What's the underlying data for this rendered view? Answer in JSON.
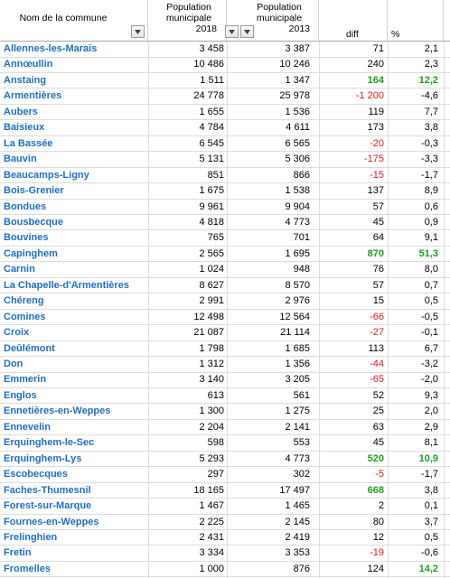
{
  "headers": {
    "name": "Nom de la commune",
    "pop2018": "Population municipale 2018",
    "pop2018_lines": [
      "Population",
      "municipale",
      "2018"
    ],
    "pop2013_lines": [
      "Population",
      "municipale",
      "2013"
    ],
    "diff": "diff",
    "pct": "%"
  },
  "colors": {
    "link_blue": "#1f6fc5",
    "negative_red": "#e21a1a",
    "highlight_green": "#1ea01e"
  },
  "rows": [
    {
      "name": "Allennes-les-Marais",
      "p2018": "3 458",
      "p2013": "3 387",
      "diff": "71",
      "pct": "2,1",
      "neg": false,
      "big": false
    },
    {
      "name": "Annœullin",
      "p2018": "10 486",
      "p2013": "10 246",
      "diff": "240",
      "pct": "2,3",
      "neg": false,
      "big": false
    },
    {
      "name": "Anstaing",
      "p2018": "1 511",
      "p2013": "1 347",
      "diff": "164",
      "pct": "12,2",
      "neg": false,
      "big": true
    },
    {
      "name": "Armentières",
      "p2018": "24 778",
      "p2013": "25 978",
      "diff": "-1 200",
      "pct": "-4,6",
      "neg": true,
      "big": false
    },
    {
      "name": "Aubers",
      "p2018": "1 655",
      "p2013": "1 536",
      "diff": "119",
      "pct": "7,7",
      "neg": false,
      "big": false
    },
    {
      "name": "Baisieux",
      "p2018": "4 784",
      "p2013": "4 611",
      "diff": "173",
      "pct": "3,8",
      "neg": false,
      "big": false
    },
    {
      "name": "La Bassée",
      "p2018": "6 545",
      "p2013": "6 565",
      "diff": "-20",
      "pct": "-0,3",
      "neg": true,
      "big": false
    },
    {
      "name": "Bauvin",
      "p2018": "5 131",
      "p2013": "5 306",
      "diff": "-175",
      "pct": "-3,3",
      "neg": true,
      "big": false
    },
    {
      "name": "Beaucamps-Ligny",
      "p2018": "851",
      "p2013": "866",
      "diff": "-15",
      "pct": "-1,7",
      "neg": true,
      "big": false
    },
    {
      "name": "Bois-Grenier",
      "p2018": "1 675",
      "p2013": "1 538",
      "diff": "137",
      "pct": "8,9",
      "neg": false,
      "big": false
    },
    {
      "name": "Bondues",
      "p2018": "9 961",
      "p2013": "9 904",
      "diff": "57",
      "pct": "0,6",
      "neg": false,
      "big": false
    },
    {
      "name": "Bousbecque",
      "p2018": "4 818",
      "p2013": "4 773",
      "diff": "45",
      "pct": "0,9",
      "neg": false,
      "big": false
    },
    {
      "name": "Bouvines",
      "p2018": "765",
      "p2013": "701",
      "diff": "64",
      "pct": "9,1",
      "neg": false,
      "big": false
    },
    {
      "name": "Capinghem",
      "p2018": "2 565",
      "p2013": "1 695",
      "diff": "870",
      "pct": "51,3",
      "neg": false,
      "big": true
    },
    {
      "name": "Carnin",
      "p2018": "1 024",
      "p2013": "948",
      "diff": "76",
      "pct": "8,0",
      "neg": false,
      "big": false
    },
    {
      "name": "La Chapelle-d'Armentières",
      "p2018": "8 627",
      "p2013": "8 570",
      "diff": "57",
      "pct": "0,7",
      "neg": false,
      "big": false
    },
    {
      "name": "Chéreng",
      "p2018": "2 991",
      "p2013": "2 976",
      "diff": "15",
      "pct": "0,5",
      "neg": false,
      "big": false
    },
    {
      "name": "Comines",
      "p2018": "12 498",
      "p2013": "12 564",
      "diff": "-66",
      "pct": "-0,5",
      "neg": true,
      "big": false
    },
    {
      "name": "Croix",
      "p2018": "21 087",
      "p2013": "21 114",
      "diff": "-27",
      "pct": "-0,1",
      "neg": true,
      "big": false
    },
    {
      "name": "Deûlémont",
      "p2018": "1 798",
      "p2013": "1 685",
      "diff": "113",
      "pct": "6,7",
      "neg": false,
      "big": false
    },
    {
      "name": "Don",
      "p2018": "1 312",
      "p2013": "1 356",
      "diff": "-44",
      "pct": "-3,2",
      "neg": true,
      "big": false
    },
    {
      "name": "Emmerin",
      "p2018": "3 140",
      "p2013": "3 205",
      "diff": "-65",
      "pct": "-2,0",
      "neg": true,
      "big": false
    },
    {
      "name": "Englos",
      "p2018": "613",
      "p2013": "561",
      "diff": "52",
      "pct": "9,3",
      "neg": false,
      "big": false
    },
    {
      "name": "Ennetières-en-Weppes",
      "p2018": "1 300",
      "p2013": "1 275",
      "diff": "25",
      "pct": "2,0",
      "neg": false,
      "big": false
    },
    {
      "name": "Ennevelin",
      "p2018": "2 204",
      "p2013": "2 141",
      "diff": "63",
      "pct": "2,9",
      "neg": false,
      "big": false
    },
    {
      "name": "Erquinghem-le-Sec",
      "p2018": "598",
      "p2013": "553",
      "diff": "45",
      "pct": "8,1",
      "neg": false,
      "big": false
    },
    {
      "name": "Erquinghem-Lys",
      "p2018": "5 293",
      "p2013": "4 773",
      "diff": "520",
      "pct": "10,9",
      "neg": false,
      "big": true
    },
    {
      "name": "Escobecques",
      "p2018": "297",
      "p2013": "302",
      "diff": "-5",
      "pct": "-1,7",
      "neg": true,
      "big": false
    },
    {
      "name": "Faches-Thumesnil",
      "p2018": "18 165",
      "p2013": "17 497",
      "diff": "668",
      "pct": "3,8",
      "neg": false,
      "big": "diffonly"
    },
    {
      "name": "Forest-sur-Marque",
      "p2018": "1 467",
      "p2013": "1 465",
      "diff": "2",
      "pct": "0,1",
      "neg": false,
      "big": false
    },
    {
      "name": "Fournes-en-Weppes",
      "p2018": "2 225",
      "p2013": "2 145",
      "diff": "80",
      "pct": "3,7",
      "neg": false,
      "big": false
    },
    {
      "name": "Frelinghien",
      "p2018": "2 431",
      "p2013": "2 419",
      "diff": "12",
      "pct": "0,5",
      "neg": false,
      "big": false
    },
    {
      "name": "Fretin",
      "p2018": "3 334",
      "p2013": "3 353",
      "diff": "-19",
      "pct": "-0,6",
      "neg": true,
      "big": false
    },
    {
      "name": "Fromelles",
      "p2018": "1 000",
      "p2013": "876",
      "diff": "124",
      "pct": "14,2",
      "neg": false,
      "big": "pctonly"
    }
  ]
}
